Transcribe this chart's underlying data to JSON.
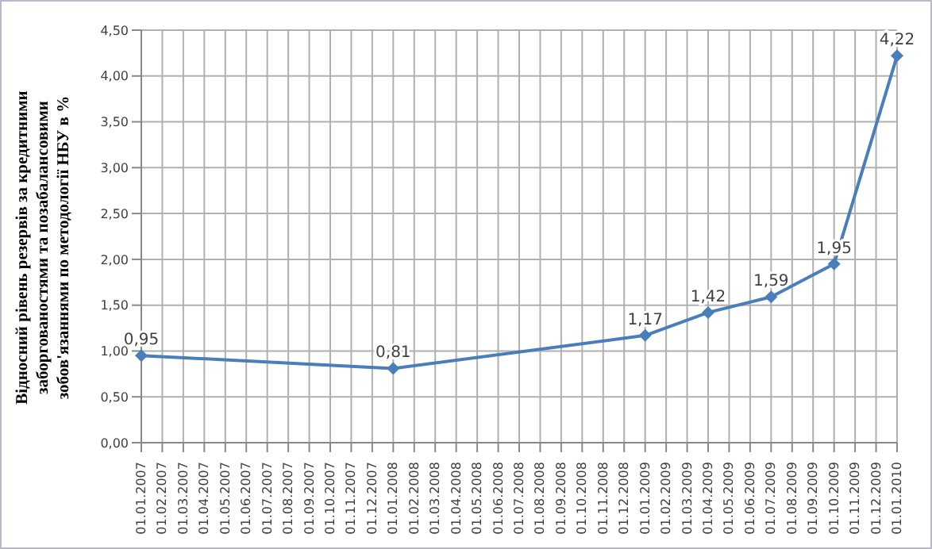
{
  "chart_data": {
    "type": "line",
    "ylabel": "Відносний рівень резервів за кредитними заборгованостями та позабалансовими зобов'язаннями по методології НБУ в %",
    "categories": [
      "01.01.2007",
      "01.02.2007",
      "01.03.2007",
      "01.04.2007",
      "01.05.2007",
      "01.06.2007",
      "01.07.2007",
      "01.08.2007",
      "01.09.2007",
      "01.10.2007",
      "01.11.2007",
      "01.12.2007",
      "01.01.2008",
      "01.02.2008",
      "01.03.2008",
      "01.04.2008",
      "01.05.2008",
      "01.06.2008",
      "01.07.2008",
      "01.08.2008",
      "01.09.2008",
      "01.10.2008",
      "01.11.2008",
      "01.12.2008",
      "01.01.2009",
      "01.02.2009",
      "01.03.2009",
      "01.04.2009",
      "01.05.2009",
      "01.06.2009",
      "01.07.2009",
      "01.08.2009",
      "01.09.2009",
      "01.10.2009",
      "01.11.2009",
      "01.12.2009",
      "01.01.2010"
    ],
    "series": [
      {
        "color": "#4a7ebb",
        "values": [
          0.95,
          null,
          null,
          null,
          null,
          null,
          null,
          null,
          null,
          null,
          null,
          null,
          0.81,
          null,
          null,
          null,
          null,
          null,
          null,
          null,
          null,
          null,
          null,
          null,
          1.17,
          null,
          null,
          1.42,
          null,
          null,
          1.59,
          null,
          null,
          1.95,
          null,
          null,
          4.22
        ],
        "value_labels": [
          "0,95",
          null,
          null,
          null,
          null,
          null,
          null,
          null,
          null,
          null,
          null,
          null,
          "0,81",
          null,
          null,
          null,
          null,
          null,
          null,
          null,
          null,
          null,
          null,
          null,
          "1,17",
          null,
          null,
          "1,42",
          null,
          null,
          "1,59",
          null,
          null,
          "1,95",
          null,
          null,
          "4,22"
        ]
      }
    ],
    "ylim": [
      0,
      4.5
    ],
    "yticks": [
      {
        "value": 0,
        "label": "0,00"
      },
      {
        "value": 0.5,
        "label": "0,50"
      },
      {
        "value": 1,
        "label": "1,00"
      },
      {
        "value": 1.5,
        "label": "1,50"
      },
      {
        "value": 2,
        "label": "2,00"
      },
      {
        "value": 2.5,
        "label": "2,50"
      },
      {
        "value": 3,
        "label": "3,00"
      },
      {
        "value": 3.5,
        "label": "3,50"
      },
      {
        "value": 4,
        "label": "4,00"
      },
      {
        "value": 4.5,
        "label": "4,50"
      }
    ],
    "grid": true,
    "marker": "diamond",
    "line_style": "solid",
    "legend": false
  }
}
